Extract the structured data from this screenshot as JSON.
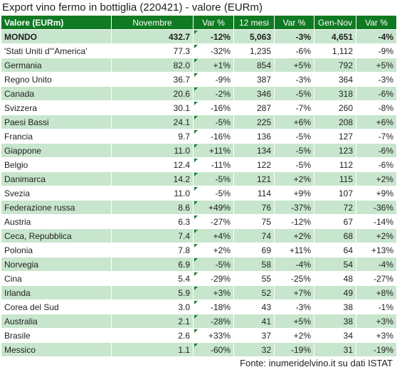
{
  "title": "Export vino fermo in bottiglia (220421) - valore (EURm)",
  "columns": [
    "Valore (EURm)",
    "Novembre",
    "Var %",
    "12 mesi",
    "Var %",
    "Gen-Nov",
    "Var %"
  ],
  "total": {
    "name": "MONDO",
    "nov": "432.7",
    "nov_var": "-12%",
    "m12": "5,063",
    "m12_var": "-3%",
    "gn": "4,651",
    "gn_var": "-4%"
  },
  "rows": [
    {
      "name": "'Stati Uniti d'\"America'",
      "nov": "77.3",
      "nov_var": "-32%",
      "m12": "1,235",
      "m12_var": "-6%",
      "gn": "1,112",
      "gn_var": "-9%"
    },
    {
      "name": "Germania",
      "nov": "82.0",
      "nov_var": "+1%",
      "m12": "854",
      "m12_var": "+5%",
      "gn": "792",
      "gn_var": "+5%"
    },
    {
      "name": "Regno Unito",
      "nov": "36.7",
      "nov_var": "-9%",
      "m12": "387",
      "m12_var": "-3%",
      "gn": "364",
      "gn_var": "-3%"
    },
    {
      "name": "Canada",
      "nov": "20.6",
      "nov_var": "-2%",
      "m12": "346",
      "m12_var": "-5%",
      "gn": "318",
      "gn_var": "-6%"
    },
    {
      "name": "Svizzera",
      "nov": "30.1",
      "nov_var": "-16%",
      "m12": "287",
      "m12_var": "-7%",
      "gn": "260",
      "gn_var": "-8%"
    },
    {
      "name": "Paesi Bassi",
      "nov": "24.1",
      "nov_var": "-5%",
      "m12": "225",
      "m12_var": "+6%",
      "gn": "208",
      "gn_var": "+6%"
    },
    {
      "name": "Francia",
      "nov": "9.7",
      "nov_var": "-16%",
      "m12": "136",
      "m12_var": "-5%",
      "gn": "127",
      "gn_var": "-7%"
    },
    {
      "name": "Giappone",
      "nov": "11.0",
      "nov_var": "+11%",
      "m12": "134",
      "m12_var": "-5%",
      "gn": "123",
      "gn_var": "-6%"
    },
    {
      "name": "Belgio",
      "nov": "12.4",
      "nov_var": "-11%",
      "m12": "122",
      "m12_var": "-5%",
      "gn": "112",
      "gn_var": "-6%"
    },
    {
      "name": "Danimarca",
      "nov": "14.2",
      "nov_var": "-5%",
      "m12": "121",
      "m12_var": "+2%",
      "gn": "115",
      "gn_var": "+2%"
    },
    {
      "name": "Svezia",
      "nov": "11.0",
      "nov_var": "-5%",
      "m12": "114",
      "m12_var": "+9%",
      "gn": "107",
      "gn_var": "+9%"
    },
    {
      "name": "Federazione russa",
      "nov": "8.6",
      "nov_var": "+49%",
      "m12": "76",
      "m12_var": "-37%",
      "gn": "72",
      "gn_var": "-36%"
    },
    {
      "name": "Austria",
      "nov": "6.3",
      "nov_var": "-27%",
      "m12": "75",
      "m12_var": "-12%",
      "gn": "67",
      "gn_var": "-14%"
    },
    {
      "name": "Ceca, Repubblica",
      "nov": "7.4",
      "nov_var": "+4%",
      "m12": "74",
      "m12_var": "+2%",
      "gn": "68",
      "gn_var": "+2%"
    },
    {
      "name": "Polonia",
      "nov": "7.8",
      "nov_var": "+2%",
      "m12": "69",
      "m12_var": "+11%",
      "gn": "64",
      "gn_var": "+13%"
    },
    {
      "name": "Norvegia",
      "nov": "6.9",
      "nov_var": "-5%",
      "m12": "58",
      "m12_var": "-4%",
      "gn": "54",
      "gn_var": "-4%"
    },
    {
      "name": "Cina",
      "nov": "5.4",
      "nov_var": "-29%",
      "m12": "55",
      "m12_var": "-25%",
      "gn": "48",
      "gn_var": "-27%"
    },
    {
      "name": "Irlanda",
      "nov": "5.9",
      "nov_var": "+3%",
      "m12": "52",
      "m12_var": "+7%",
      "gn": "49",
      "gn_var": "+8%"
    },
    {
      "name": "Corea del Sud",
      "nov": "3.0",
      "nov_var": "-18%",
      "m12": "43",
      "m12_var": "-3%",
      "gn": "38",
      "gn_var": "-1%"
    },
    {
      "name": "Australia",
      "nov": "2.1",
      "nov_var": "-28%",
      "m12": "41",
      "m12_var": "+5%",
      "gn": "38",
      "gn_var": "+3%"
    },
    {
      "name": "Brasile",
      "nov": "2.6",
      "nov_var": "+33%",
      "m12": "37",
      "m12_var": "+2%",
      "gn": "34",
      "gn_var": "+3%"
    },
    {
      "name": "Messico",
      "nov": "1.1",
      "nov_var": "-60%",
      "m12": "32",
      "m12_var": "-19%",
      "gn": "31",
      "gn_var": "-19%"
    }
  ],
  "footer": "Fonte: inumeridelvino.it su dati ISTAT",
  "colors": {
    "header_bg": "#0f7a22",
    "band_bg": "#c8e6cd",
    "marker": "#1a7f37"
  }
}
